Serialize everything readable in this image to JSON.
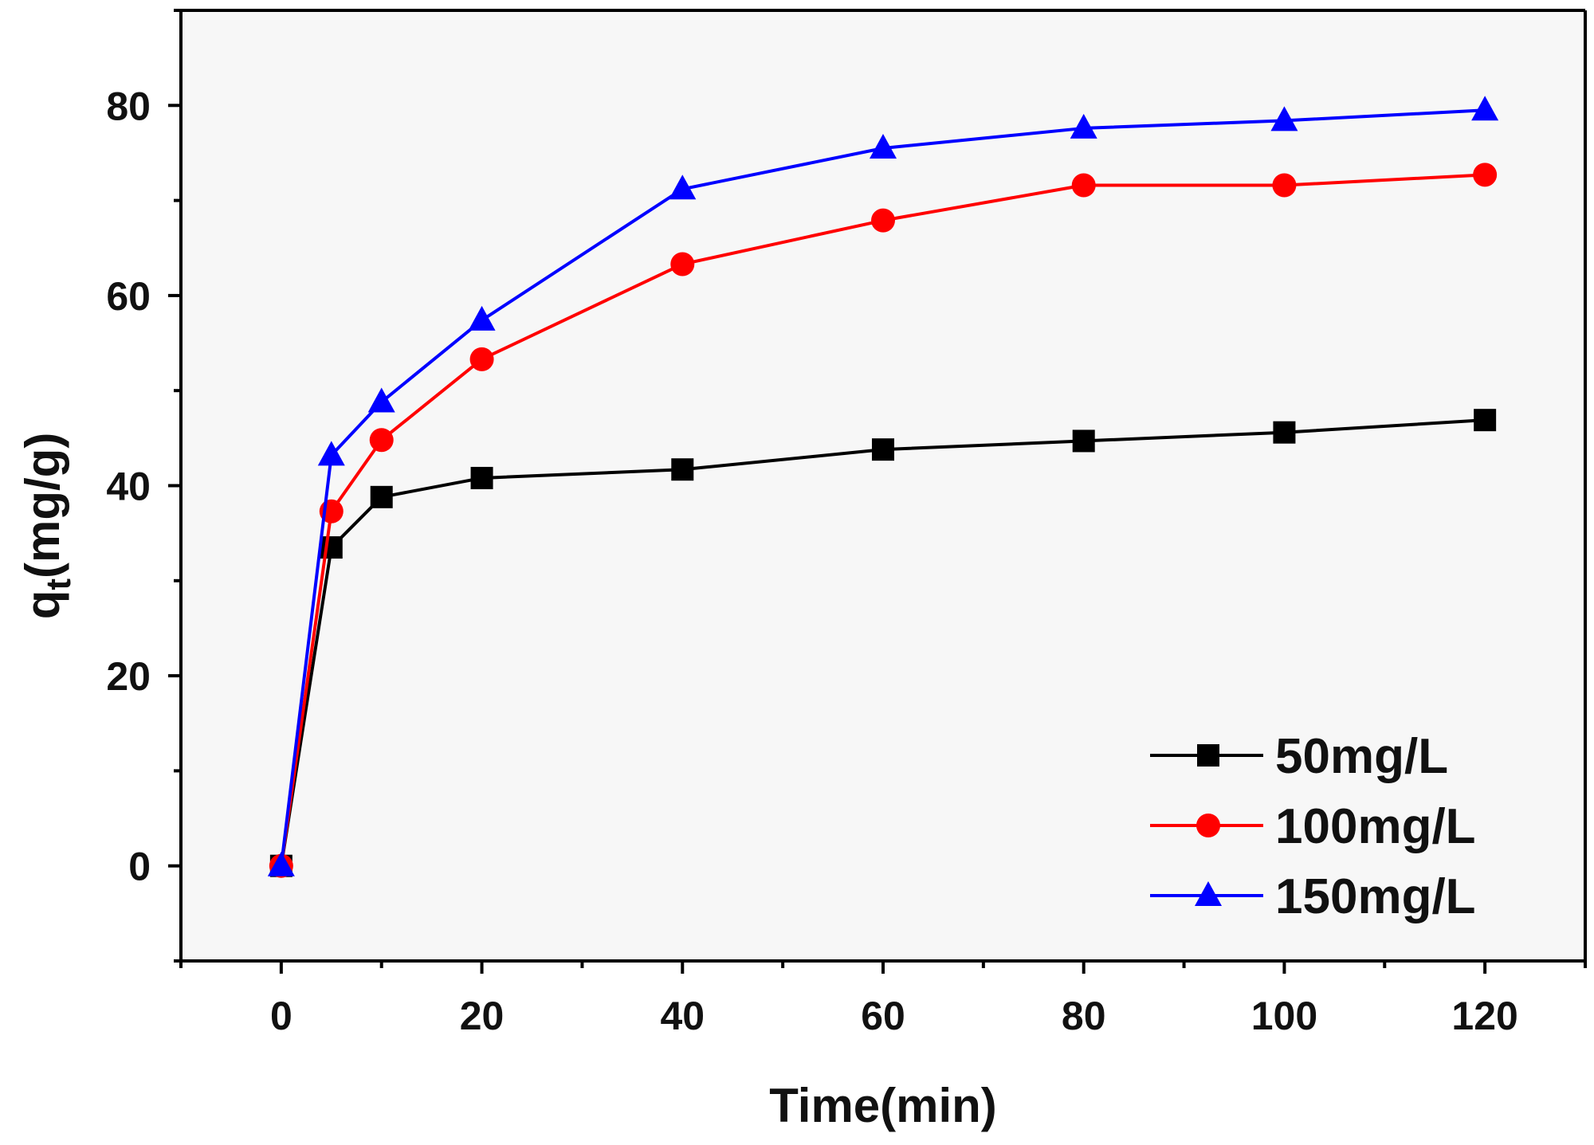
{
  "chart_data": {
    "type": "line",
    "title": "",
    "xlabel": "Time(min)",
    "ylabel": {
      "main": "q",
      "sub": "t",
      "unit": "(mg/g)"
    },
    "xlim": [
      -10,
      130
    ],
    "ylim": [
      -10,
      90
    ],
    "xticks": [
      0,
      20,
      40,
      60,
      80,
      100,
      120
    ],
    "yticks": [
      0,
      20,
      40,
      60,
      80
    ],
    "grid": false,
    "legend_position": "bottom-right",
    "x": [
      0,
      5,
      10,
      20,
      40,
      60,
      80,
      100,
      120
    ],
    "series": [
      {
        "name": "50mg/L",
        "color": "#000000",
        "marker": "square",
        "values": [
          0,
          33.5,
          38.8,
          40.8,
          41.7,
          43.8,
          44.7,
          45.6,
          46.9
        ]
      },
      {
        "name": "100mg/L",
        "color": "#ff0000",
        "marker": "circle",
        "values": [
          0,
          37.3,
          44.8,
          53.3,
          63.3,
          67.9,
          71.6,
          71.6,
          72.7
        ]
      },
      {
        "name": "150mg/L",
        "color": "#0000ff",
        "marker": "triangle",
        "values": [
          0,
          43.2,
          48.8,
          57.4,
          71.2,
          75.5,
          77.6,
          78.4,
          79.5
        ]
      }
    ]
  }
}
